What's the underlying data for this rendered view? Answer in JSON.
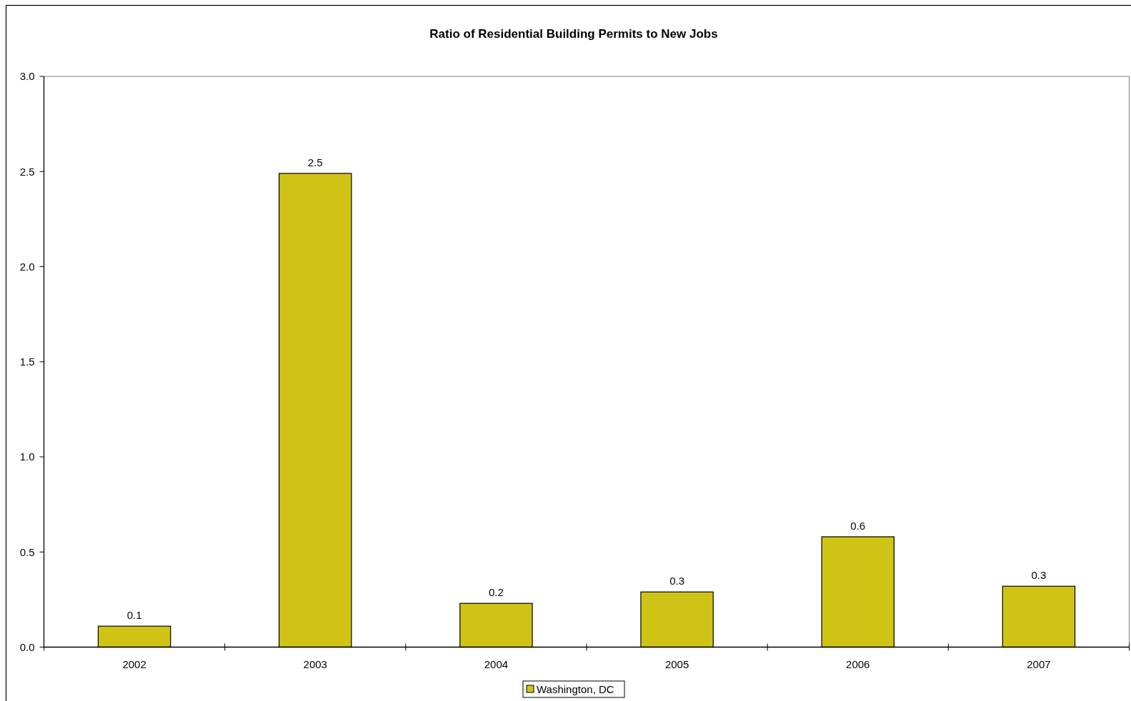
{
  "chart_data": {
    "type": "bar",
    "title": "Ratio of Residential Building Permits to New Jobs",
    "categories": [
      "2002",
      "2003",
      "2004",
      "2005",
      "2006",
      "2007"
    ],
    "series": [
      {
        "name": "Washington, DC",
        "color": "#cfc416",
        "values": [
          0.11,
          2.49,
          0.23,
          0.29,
          0.58,
          0.32
        ],
        "value_labels": [
          "0.1",
          "2.5",
          "0.2",
          "0.3",
          "0.6",
          "0.3"
        ]
      }
    ],
    "ylim": [
      0,
      3
    ],
    "yticks": [
      {
        "value": 0,
        "label": "0.0"
      },
      {
        "value": 0.5,
        "label": "0.5"
      },
      {
        "value": 1,
        "label": "1.0"
      },
      {
        "value": 1.5,
        "label": "1.5"
      },
      {
        "value": 2,
        "label": "2.0"
      },
      {
        "value": 2.5,
        "label": "2.5"
      },
      {
        "value": 3,
        "label": "3.0"
      }
    ],
    "legend": "bottom"
  }
}
